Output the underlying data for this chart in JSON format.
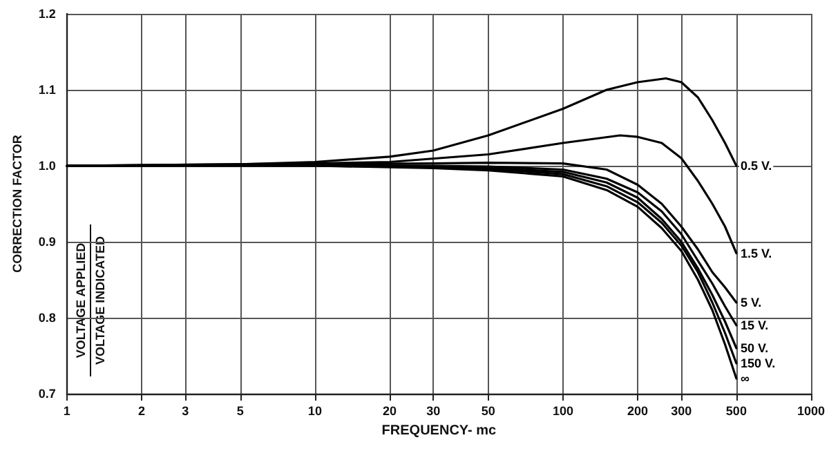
{
  "chart_data": {
    "type": "line",
    "xlabel": "FREQUENCY- mc",
    "ylabel": "CORRECTION FACTOR",
    "annotations": [
      "VOLTAGE APPLIED",
      "VOLTAGE INDICATED"
    ],
    "log": "x",
    "xlim": [
      1,
      1000
    ],
    "xticks": [
      1,
      2,
      3,
      5,
      10,
      20,
      30,
      50,
      100,
      200,
      300,
      500,
      1000
    ],
    "ylim": [
      0.7,
      1.2
    ],
    "yticks": [
      0.7,
      0.8,
      0.9,
      {
        "value": 1,
        "label": "1.0"
      },
      1.1,
      1.2
    ],
    "grid": true,
    "legend": false,
    "marker": "none",
    "line_style": "solid",
    "series": [
      {
        "name": "0.5 V.",
        "color": "#000000",
        "x": [
          1,
          5,
          10,
          20,
          30,
          50,
          100,
          150,
          200,
          260,
          300,
          350,
          400,
          450,
          500
        ],
        "values": [
          1.0,
          1.002,
          1.005,
          1.012,
          1.02,
          1.04,
          1.075,
          1.1,
          1.11,
          1.115,
          1.11,
          1.09,
          1.06,
          1.03,
          1.0
        ]
      },
      {
        "name": "1.5 V.",
        "color": "#000000",
        "x": [
          1,
          10,
          20,
          50,
          100,
          170,
          200,
          250,
          300,
          350,
          400,
          450,
          500
        ],
        "values": [
          1.0,
          1.003,
          1.005,
          1.015,
          1.03,
          1.04,
          1.038,
          1.03,
          1.01,
          0.98,
          0.95,
          0.92,
          0.885
        ]
      },
      {
        "name": "5 V.",
        "color": "#000000",
        "x": [
          1,
          10,
          30,
          50,
          100,
          150,
          200,
          250,
          300,
          350,
          400,
          450,
          500
        ],
        "values": [
          1.0,
          1.002,
          1.003,
          1.004,
          1.003,
          0.995,
          0.975,
          0.95,
          0.92,
          0.89,
          0.86,
          0.84,
          0.82
        ]
      },
      {
        "name": "15 V.",
        "color": "#000000",
        "x": [
          1,
          10,
          30,
          50,
          100,
          150,
          200,
          250,
          300,
          350,
          400,
          450,
          500
        ],
        "values": [
          1.0,
          1.001,
          1.0,
          0.999,
          0.995,
          0.983,
          0.965,
          0.94,
          0.91,
          0.875,
          0.845,
          0.815,
          0.79
        ]
      },
      {
        "name": "50 V.",
        "color": "#000000",
        "x": [
          1,
          10,
          30,
          50,
          100,
          150,
          200,
          250,
          300,
          350,
          400,
          450,
          500
        ],
        "values": [
          1.0,
          1.001,
          0.999,
          0.997,
          0.992,
          0.978,
          0.958,
          0.93,
          0.9,
          0.865,
          0.83,
          0.795,
          0.76
        ]
      },
      {
        "name": "150 V.",
        "color": "#000000",
        "x": [
          1,
          10,
          30,
          50,
          100,
          150,
          200,
          250,
          300,
          350,
          400,
          450,
          500
        ],
        "values": [
          1.0,
          1.0,
          0.998,
          0.996,
          0.989,
          0.973,
          0.952,
          0.925,
          0.895,
          0.86,
          0.82,
          0.78,
          0.74
        ]
      },
      {
        "name": "∞",
        "color": "#000000",
        "x": [
          1,
          10,
          30,
          50,
          100,
          150,
          200,
          250,
          300,
          350,
          400,
          450,
          500
        ],
        "values": [
          1.0,
          1.0,
          0.997,
          0.994,
          0.986,
          0.968,
          0.946,
          0.918,
          0.888,
          0.85,
          0.81,
          0.765,
          0.72
        ]
      }
    ]
  }
}
